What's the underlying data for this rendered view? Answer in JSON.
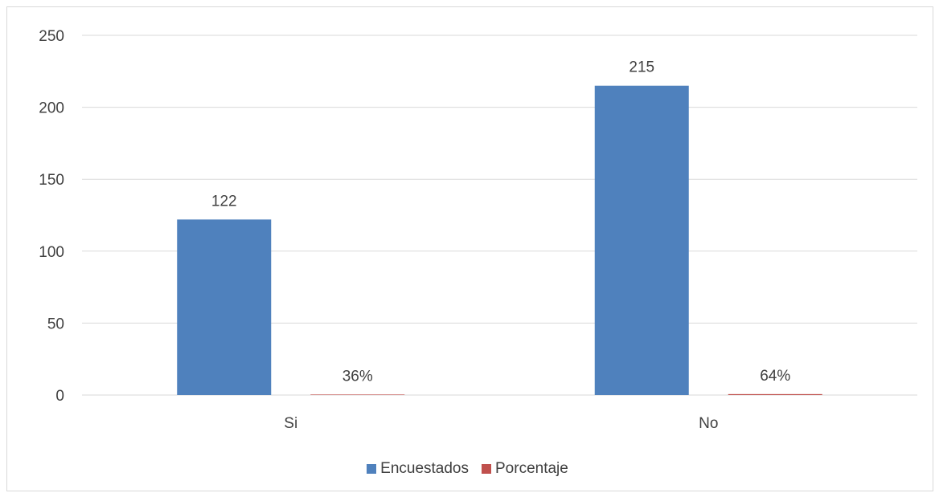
{
  "chart_data": {
    "type": "bar",
    "categories": [
      "Si",
      "No"
    ],
    "series": [
      {
        "name": "Encuestados",
        "values": [
          122,
          215
        ],
        "labels": [
          "122",
          "215"
        ],
        "color": "#4f81bd"
      },
      {
        "name": "Porcentaje",
        "values": [
          0.36,
          0.64
        ],
        "labels": [
          "36%",
          "64%"
        ],
        "color": "#c0504d"
      }
    ],
    "y_ticks": [
      "0",
      "50",
      "100",
      "150",
      "200",
      "250"
    ],
    "ylim": [
      0,
      250
    ],
    "grid": true,
    "legend_position": "bottom"
  }
}
